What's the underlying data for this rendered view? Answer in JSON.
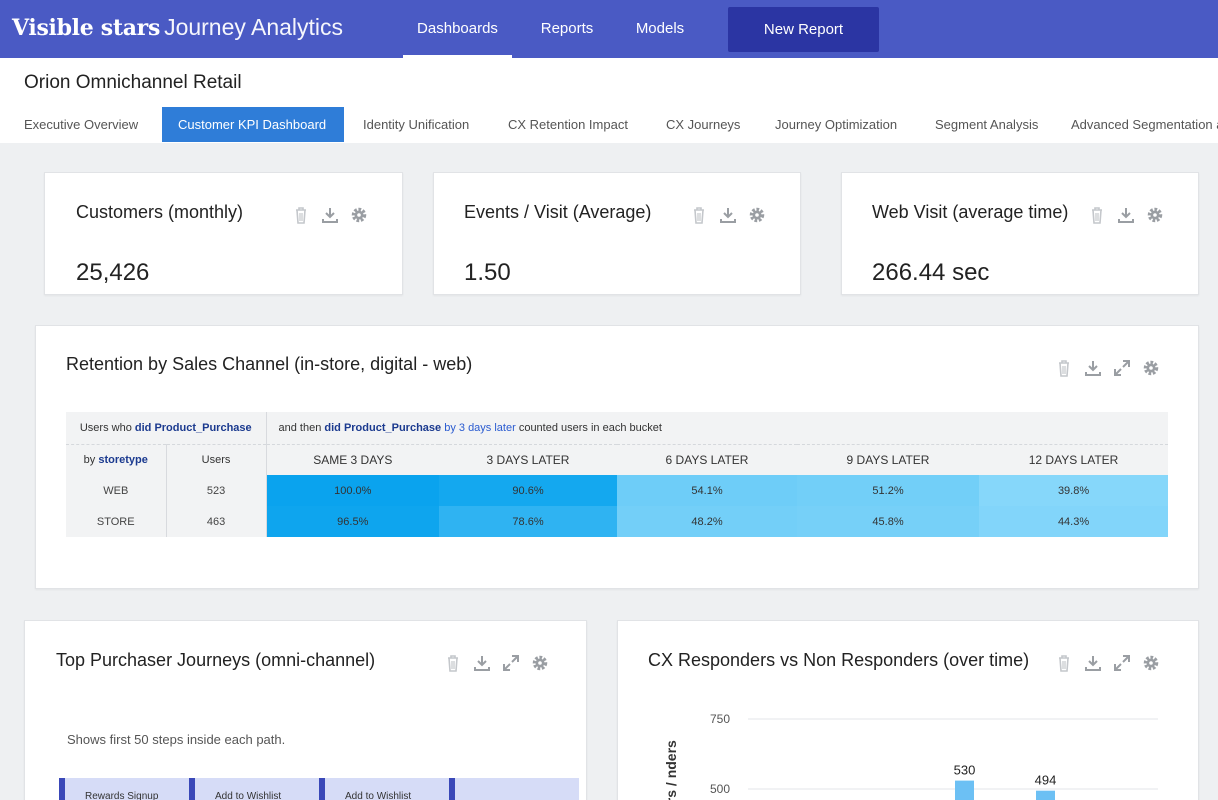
{
  "brand": {
    "bold": "Visible stars",
    "light": "Journey Analytics"
  },
  "nav": {
    "items": [
      {
        "label": "Dashboards",
        "active": true
      },
      {
        "label": "Reports",
        "active": false
      },
      {
        "label": "Models",
        "active": false
      }
    ],
    "new_report": "New Report"
  },
  "project_title": "Orion Omnichannel Retail",
  "tabs": [
    {
      "label": "Executive Overview",
      "active": false
    },
    {
      "label": "Customer KPI Dashboard",
      "active": true
    },
    {
      "label": "Identity Unification",
      "active": false
    },
    {
      "label": "CX Retention Impact",
      "active": false
    },
    {
      "label": "CX Journeys",
      "active": false
    },
    {
      "label": "Journey Optimization",
      "active": false
    },
    {
      "label": "Segment Analysis",
      "active": false
    },
    {
      "label": "Advanced Segmentation a",
      "active": false
    }
  ],
  "kpis": [
    {
      "title": "Customers (monthly)",
      "value": "25,426"
    },
    {
      "title": "Events / Visit (Average)",
      "value": "1.50"
    },
    {
      "title": "Web Visit (average time)",
      "value": "266.44 sec"
    }
  ],
  "retention": {
    "title": "Retention by Sales Channel (in-store, digital - web)",
    "header_left_a": "Users who ",
    "header_left_b": "did Product_Purchase",
    "header_right_a": "and then ",
    "header_right_b": "did Product_Purchase",
    "header_right_c": "by 3 days later",
    "header_right_d": " counted users in each bucket",
    "by_label": "by ",
    "by_key": "storetype",
    "users_label": "Users",
    "buckets": [
      "SAME 3 DAYS",
      "3 DAYS LATER",
      "6 DAYS LATER",
      "9 DAYS LATER",
      "12 DAYS LATER"
    ],
    "rows": [
      {
        "name": "WEB",
        "users": "523",
        "cells": [
          "100.0%",
          "90.6%",
          "54.1%",
          "51.2%",
          "39.8%"
        ]
      },
      {
        "name": "STORE",
        "users": "463",
        "cells": [
          "96.5%",
          "78.6%",
          "48.2%",
          "45.8%",
          "44.3%"
        ]
      }
    ],
    "cell_colors": [
      [
        "#0aa3ee",
        "#14a8ef",
        "#6ecdf8",
        "#72cff8",
        "#86d7fa"
      ],
      [
        "#0ea5ee",
        "#2fb3f2",
        "#73cff8",
        "#76d0f8",
        "#82d5fa"
      ]
    ]
  },
  "journeys": {
    "title": "Top Purchaser Journeys (omni-channel)",
    "note": "Shows first 50 steps inside each path.",
    "steps": [
      "Rewards Signup",
      "Add to Wishlist",
      "Add to Wishlist",
      ""
    ]
  },
  "responders": {
    "title": "CX Responders vs Non Responders (over time)",
    "ylabel_partial": "ers / nders",
    "chart_data": {
      "type": "bar",
      "ylim": [
        250,
        750
      ],
      "yticks": [
        "750",
        "500"
      ],
      "data_labels": [
        "530",
        "494"
      ],
      "values": [
        530,
        494
      ],
      "grid": true
    }
  }
}
